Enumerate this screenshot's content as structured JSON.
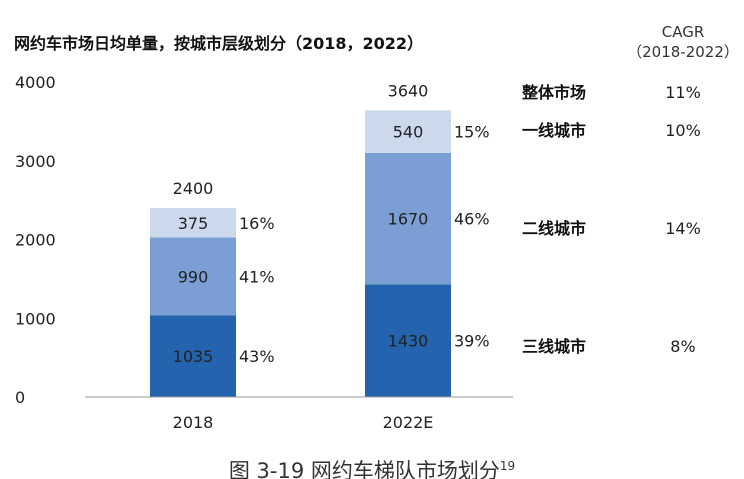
{
  "chart_data": {
    "type": "bar",
    "stacked": true,
    "title": "网约车市场日均单量，按城市层级划分（2018，2022）",
    "categories": [
      "2018",
      "2022E"
    ],
    "series": [
      {
        "name": "三线城市",
        "values": [
          1035,
          1430
        ],
        "shares": [
          "43%",
          "39%"
        ],
        "color": "#2463ae",
        "cagr": "8%"
      },
      {
        "name": "二线城市",
        "values": [
          990,
          1670
        ],
        "shares": [
          "41%",
          "46%"
        ],
        "color": "#7b9fd4",
        "cagr": "14%"
      },
      {
        "name": "一线城市",
        "values": [
          375,
          540
        ],
        "shares": [
          "16%",
          "15%"
        ],
        "color": "#ccd8ec",
        "cagr": "10%"
      }
    ],
    "totals": [
      2400,
      3640
    ],
    "total_label": "整体市场",
    "total_cagr": "11%",
    "cagr_header": [
      "CAGR",
      "（2018-2022）"
    ],
    "y_ticks": [
      "0",
      "1000",
      "2000",
      "3000",
      "4000"
    ],
    "ylim": [
      0,
      4000
    ],
    "grid": false,
    "legend_position": "right"
  },
  "caption": "图 3-19  网约车梯队市场划分",
  "caption_sup": "19"
}
